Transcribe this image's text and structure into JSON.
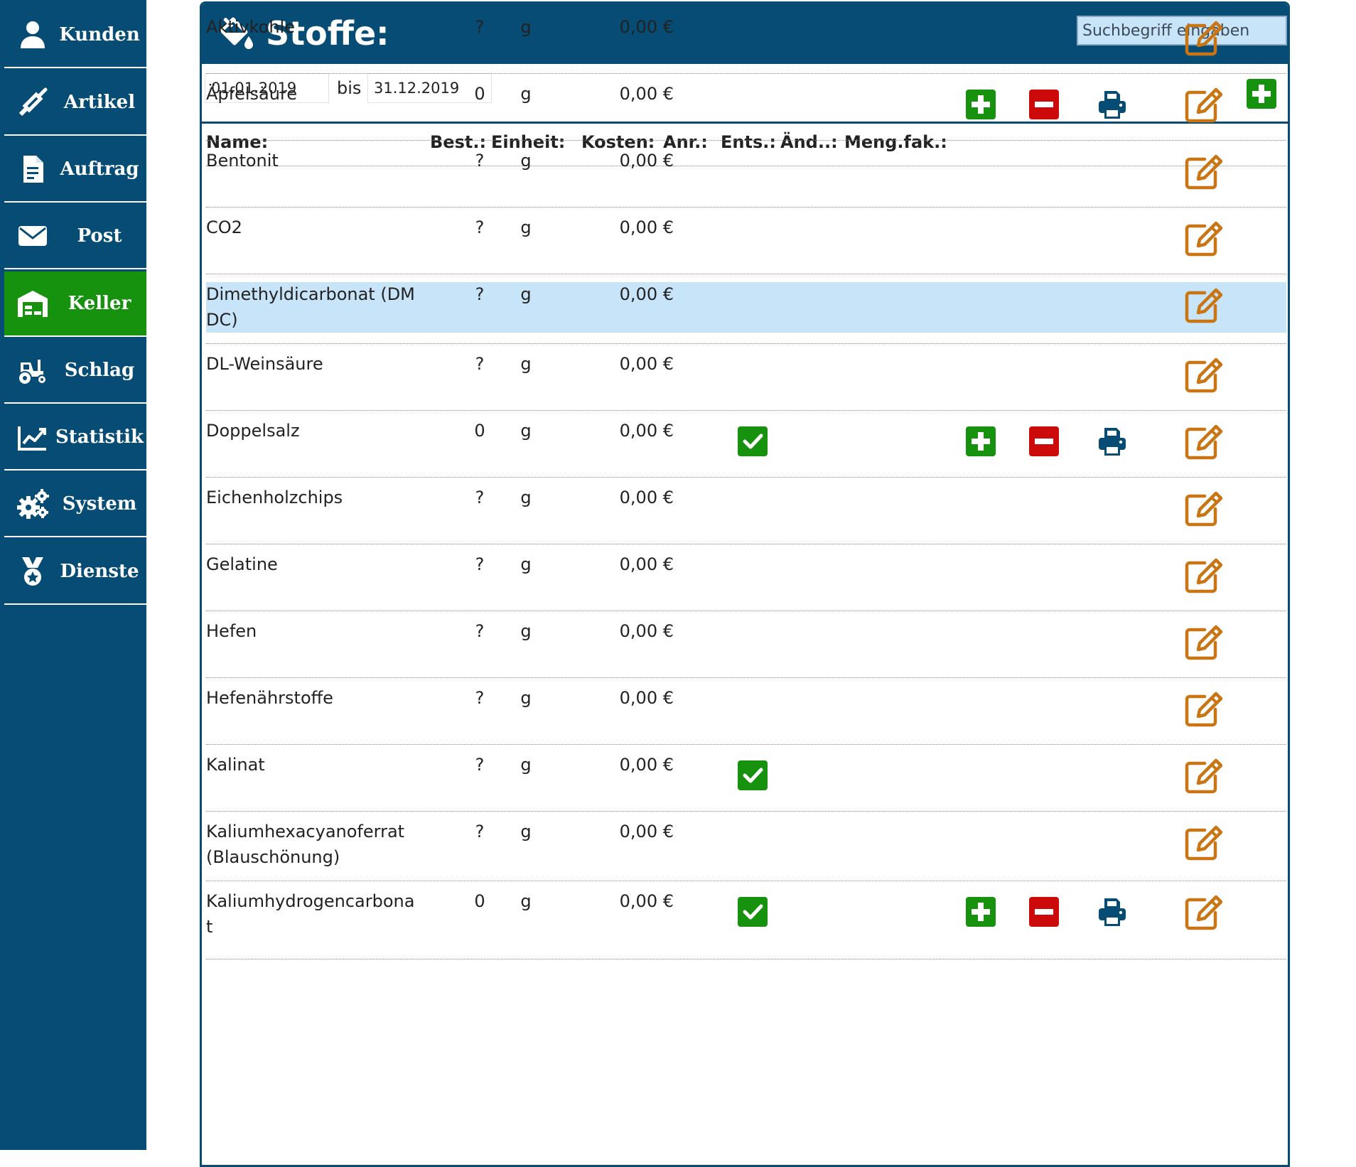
{
  "sidebar": {
    "items": [
      {
        "label": "Kunden",
        "icon": "user-icon",
        "active": false
      },
      {
        "label": "Artikel",
        "icon": "wine-bottle-icon",
        "active": false
      },
      {
        "label": "Auftrag",
        "icon": "document-icon",
        "active": false
      },
      {
        "label": "Post",
        "icon": "envelope-icon",
        "active": false
      },
      {
        "label": "Keller",
        "icon": "warehouse-icon",
        "active": true
      },
      {
        "label": "Schlag",
        "icon": "tractor-icon",
        "active": false
      },
      {
        "label": "Statistik",
        "icon": "chart-line-icon",
        "active": false
      },
      {
        "label": "System",
        "icon": "cogs-icon",
        "active": false
      },
      {
        "label": "Dienste",
        "icon": "medal-icon",
        "active": false
      }
    ]
  },
  "panel": {
    "title": "Stoffe:",
    "title_icon": "fill-drip-icon",
    "search_placeholder": "Suchbegriff eingaben",
    "date_from": "01.01.2019",
    "date_to": "31.12.2019",
    "bis_label": "bis"
  },
  "table": {
    "headers": {
      "name": "Name:",
      "stock": "Best.:",
      "unit": "Einheit:",
      "cost": "Kosten:",
      "anr": "Anr.:",
      "ents": "Ents.:",
      "aend": "Änd..:",
      "mengfak": "Meng.fak.:"
    },
    "rows": [
      {
        "name": "Aktivkohle",
        "stock": "?",
        "unit": "g",
        "cost": "0,00 €",
        "check": false,
        "actions": false,
        "highlight": false
      },
      {
        "name": "Äpfelsäure",
        "stock": "0",
        "unit": "g",
        "cost": "0,00 €",
        "check": false,
        "actions": true,
        "highlight": false
      },
      {
        "name": "Bentonit",
        "stock": "?",
        "unit": "g",
        "cost": "0,00 €",
        "check": false,
        "actions": false,
        "highlight": false
      },
      {
        "name": "CO2",
        "stock": "?",
        "unit": "g",
        "cost": "0,00 €",
        "check": false,
        "actions": false,
        "highlight": false
      },
      {
        "name": "Dimethyldicarbonat (DMDC)",
        "stock": "?",
        "unit": "g",
        "cost": "0,00 €",
        "check": false,
        "actions": false,
        "highlight": true
      },
      {
        "name": "DL-Weinsäure",
        "stock": "?",
        "unit": "g",
        "cost": "0,00 €",
        "check": false,
        "actions": false,
        "highlight": false
      },
      {
        "name": "Doppelsalz",
        "stock": "0",
        "unit": "g",
        "cost": "0,00 €",
        "check": true,
        "actions": true,
        "highlight": false
      },
      {
        "name": "Eichenholzchips",
        "stock": "?",
        "unit": "g",
        "cost": "0,00 €",
        "check": false,
        "actions": false,
        "highlight": false
      },
      {
        "name": "Gelatine",
        "stock": "?",
        "unit": "g",
        "cost": "0,00 €",
        "check": false,
        "actions": false,
        "highlight": false
      },
      {
        "name": "Hefen",
        "stock": "?",
        "unit": "g",
        "cost": "0,00 €",
        "check": false,
        "actions": false,
        "highlight": false
      },
      {
        "name": "Hefenährstoffe",
        "stock": "?",
        "unit": "g",
        "cost": "0,00 €",
        "check": false,
        "actions": false,
        "highlight": false
      },
      {
        "name": "Kalinat",
        "stock": "?",
        "unit": "g",
        "cost": "0,00 €",
        "check": true,
        "actions": false,
        "highlight": false
      },
      {
        "name": "Kaliumhexacyanoferrat (Blauschönung)",
        "stock": "?",
        "unit": "g",
        "cost": "0,00 €",
        "check": false,
        "actions": false,
        "highlight": false
      },
      {
        "name": "Kaliumhydrogencarbonat",
        "stock": "0",
        "unit": "g",
        "cost": "0,00 €",
        "check": true,
        "actions": true,
        "highlight": false
      }
    ]
  },
  "colors": {
    "primary": "#074c74",
    "active": "#16920e",
    "add": "#16920e",
    "remove": "#cc0a0a",
    "print": "#074c74",
    "edit": "#c97514",
    "highlight": "#c8e4f8"
  }
}
